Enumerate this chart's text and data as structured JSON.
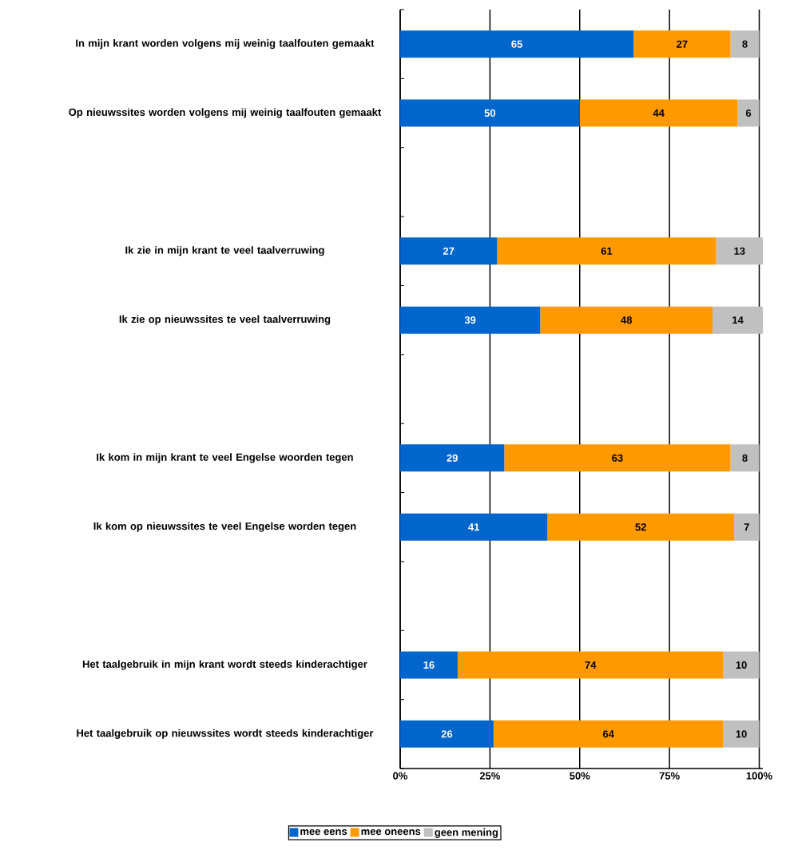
{
  "chart_data": {
    "type": "bar",
    "orientation": "horizontal",
    "stacked": true,
    "categories": [
      "In mijn krant worden volgens mij weinig taalfouten gemaakt",
      "Op nieuwssites worden volgens mij weinig taalfouten gemaakt",
      null,
      "Ik zie in mijn krant te veel taalverruwing",
      "Ik zie op nieuwssites te veel taalverruwing",
      null,
      "Ik kom in mijn krant te veel Engelse woorden tegen",
      "Ik kom op nieuwssites te veel Engelse worden tegen",
      null,
      "Het taalgebruik in mijn krant wordt steeds kinderachtiger",
      "Het taalgebruik op nieuwssites wordt steeds kinderachtiger"
    ],
    "series": [
      {
        "name": "mee eens",
        "color": "#0066cc",
        "values": [
          65,
          50,
          null,
          27,
          39,
          null,
          29,
          41,
          null,
          16,
          26
        ],
        "value_labels": [
          "65",
          "50",
          null,
          "27",
          "39",
          null,
          "29",
          "41",
          null,
          "16",
          "26"
        ]
      },
      {
        "name": "mee oneens",
        "color": "#ff9900",
        "values": [
          27,
          44,
          null,
          61,
          48,
          null,
          63,
          52,
          null,
          74,
          64
        ],
        "value_labels": [
          "27",
          "44",
          null,
          "61",
          "48",
          null,
          "63",
          "52",
          null,
          "74",
          "64"
        ]
      },
      {
        "name": "geen mening",
        "color": "#c0c0c0",
        "values": [
          8,
          6,
          null,
          13,
          14,
          null,
          8,
          7,
          null,
          10,
          10
        ],
        "value_labels": [
          "8",
          "6",
          null,
          "13",
          "14",
          null,
          "8",
          "7",
          null,
          "10",
          "10"
        ]
      }
    ],
    "xlim": [
      0,
      101
    ],
    "xticks": [
      {
        "value": 0,
        "label": "0%"
      },
      {
        "value": 25,
        "label": "25%"
      },
      {
        "value": 50,
        "label": "50%"
      },
      {
        "value": 75,
        "label": "75%"
      },
      {
        "value": 100,
        "label": "100%"
      }
    ],
    "grid": "x",
    "legend": "bottom"
  }
}
